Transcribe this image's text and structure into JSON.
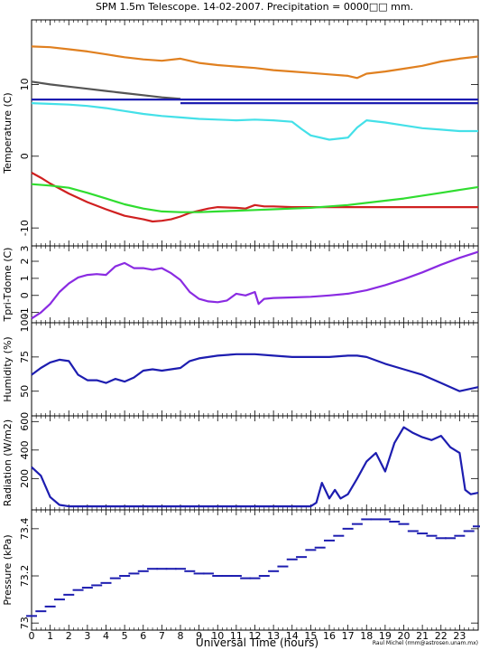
{
  "title": "SPM 1.5m Telescope. 14-02-2007. Precipitation = 0000□□ mm.",
  "xlabel": "Universal Time (hours)",
  "credit": "Raul Michel (rmm@astrosen.unam.mx)",
  "x_ticks": [
    0,
    1,
    2,
    3,
    4,
    5,
    6,
    7,
    8,
    9,
    10,
    11,
    12,
    13,
    14,
    15,
    16,
    17,
    18,
    19,
    20,
    21,
    22,
    23
  ],
  "chart_data": [
    {
      "type": "line",
      "ylabel": "Temperature (C)",
      "xlim": [
        0,
        24
      ],
      "ylim": [
        -12.5,
        19
      ],
      "y_ticks": [
        10,
        0,
        -10
      ],
      "series": [
        {
          "color": "#e08020",
          "x": [
            0,
            1,
            2,
            3,
            4,
            5,
            6,
            7,
            8,
            9,
            10,
            11,
            12,
            13,
            14,
            15,
            16,
            17,
            17.5,
            18,
            19,
            20,
            21,
            22,
            23,
            24
          ],
          "values": [
            15.3,
            15.2,
            14.9,
            14.6,
            14.2,
            13.8,
            13.5,
            13.3,
            13.6,
            13.0,
            12.7,
            12.5,
            12.3,
            12.0,
            11.8,
            11.6,
            11.4,
            11.2,
            10.9,
            11.5,
            11.8,
            12.2,
            12.6,
            13.2,
            13.6,
            13.9
          ]
        },
        {
          "color": "#555555",
          "x": [
            0,
            1,
            2,
            3,
            4,
            5,
            6,
            7,
            8
          ],
          "values": [
            10.4,
            10.0,
            9.7,
            9.4,
            9.1,
            8.8,
            8.5,
            8.2,
            8.0
          ]
        },
        {
          "color": "#1d1db0",
          "x": [
            0,
            24
          ],
          "values": [
            7.9,
            7.9
          ]
        },
        {
          "color": "#1d1db0",
          "x": [
            8,
            24
          ],
          "values": [
            7.4,
            7.4
          ]
        },
        {
          "color": "#44e0e8",
          "x": [
            0,
            1,
            2,
            3,
            4,
            5,
            6,
            7,
            8,
            9,
            10,
            11,
            12,
            13,
            14,
            14.5,
            15,
            16,
            17,
            17.5,
            18,
            19,
            20,
            21,
            22,
            23,
            24
          ],
          "values": [
            7.4,
            7.3,
            7.2,
            7.0,
            6.7,
            6.3,
            5.9,
            5.6,
            5.4,
            5.2,
            5.1,
            5.0,
            5.1,
            5.0,
            4.8,
            3.8,
            2.9,
            2.3,
            2.6,
            4.0,
            5.0,
            4.7,
            4.3,
            3.9,
            3.7,
            3.5,
            3.5
          ]
        },
        {
          "color": "#d02020",
          "x": [
            0,
            0.5,
            1,
            2,
            3,
            4,
            5,
            6,
            6.5,
            7,
            7.5,
            8,
            8.5,
            9,
            9.5,
            10,
            11,
            11.5,
            12,
            12.5,
            13,
            14,
            15,
            16,
            17,
            18,
            19,
            20,
            21,
            22,
            23,
            24
          ],
          "values": [
            -2.3,
            -3.0,
            -3.8,
            -5.2,
            -6.4,
            -7.4,
            -8.3,
            -8.8,
            -9.1,
            -9.0,
            -8.8,
            -8.4,
            -7.9,
            -7.6,
            -7.3,
            -7.1,
            -7.2,
            -7.3,
            -6.8,
            -7.0,
            -7.0,
            -7.1,
            -7.1,
            -7.1,
            -7.1,
            -7.1,
            -7.1,
            -7.1,
            -7.1,
            -7.1,
            -7.1,
            -7.1
          ]
        },
        {
          "color": "#30dd30",
          "x": [
            0,
            1,
            2,
            3,
            4,
            5,
            6,
            7,
            8,
            9,
            10,
            11,
            12,
            13,
            14,
            15,
            16,
            17,
            18,
            19,
            20,
            21,
            22,
            23,
            24
          ],
          "values": [
            -3.9,
            -4.1,
            -4.4,
            -5.1,
            -5.9,
            -6.7,
            -7.3,
            -7.7,
            -7.8,
            -7.8,
            -7.7,
            -7.6,
            -7.5,
            -7.4,
            -7.3,
            -7.2,
            -7.0,
            -6.8,
            -6.5,
            -6.2,
            -5.9,
            -5.5,
            -5.1,
            -4.7,
            -4.3
          ]
        }
      ]
    },
    {
      "type": "line",
      "ylabel": "Tpri-Tdome (C)",
      "xlim": [
        0,
        24
      ],
      "ylim": [
        -1.6,
        2.9
      ],
      "y_ticks": [
        2,
        1,
        0,
        -1
      ],
      "extra_tick_label": "3",
      "series": [
        {
          "color": "#8a2be2",
          "x": [
            0,
            0.5,
            1,
            1.5,
            2,
            2.5,
            3,
            3.5,
            4,
            4.5,
            5,
            5.5,
            6,
            6.5,
            7,
            7.5,
            8,
            8.5,
            9,
            9.5,
            10,
            10.5,
            11,
            11.5,
            12,
            12.2,
            12.5,
            13,
            14,
            15,
            16,
            17,
            18,
            19,
            20,
            21,
            22,
            23,
            24
          ],
          "values": [
            -1.35,
            -1.0,
            -0.5,
            0.2,
            0.7,
            1.05,
            1.2,
            1.25,
            1.2,
            1.7,
            1.9,
            1.6,
            1.6,
            1.5,
            1.6,
            1.3,
            0.9,
            0.2,
            -0.2,
            -0.35,
            -0.4,
            -0.3,
            0.1,
            0.0,
            0.2,
            -0.5,
            -0.2,
            -0.15,
            -0.12,
            -0.08,
            0.0,
            0.1,
            0.3,
            0.6,
            0.95,
            1.35,
            1.8,
            2.2,
            2.55
          ]
        }
      ]
    },
    {
      "type": "line",
      "ylabel": "Humidity (%)",
      "xlim": [
        0,
        24
      ],
      "ylim": [
        32,
        100
      ],
      "y_ticks": [
        100,
        75,
        50
      ],
      "series": [
        {
          "color": "#1d1db0",
          "x": [
            0,
            0.5,
            1,
            1.5,
            2,
            2.5,
            3,
            3.5,
            4,
            4.5,
            5,
            5.5,
            6,
            6.5,
            7,
            7.5,
            8,
            8.5,
            9,
            10,
            11,
            12,
            13,
            14,
            15,
            16,
            17,
            17.5,
            18,
            19,
            20,
            21,
            22,
            23,
            24
          ],
          "values": [
            62,
            67,
            71,
            73,
            72,
            62,
            58,
            58,
            56,
            59,
            57,
            60,
            65,
            66,
            65,
            66,
            67,
            72,
            74,
            76,
            77,
            77,
            76,
            75,
            75,
            75,
            76,
            76,
            75,
            70,
            66,
            62,
            56,
            50,
            53
          ]
        }
      ]
    },
    {
      "type": "line",
      "ylabel": "Radiation (W/m2)",
      "xlim": [
        0,
        24
      ],
      "ylim": [
        -20,
        640
      ],
      "y_ticks": [
        600,
        400,
        200
      ],
      "series": [
        {
          "color": "#1d1db0",
          "x": [
            0,
            0.5,
            1,
            1.5,
            2,
            3,
            4,
            5,
            6,
            7,
            8,
            9,
            10,
            11,
            12,
            13,
            14,
            15,
            15.3,
            15.6,
            16,
            16.3,
            16.6,
            17,
            17.5,
            18,
            18.5,
            19,
            19.5,
            20,
            20.5,
            21,
            21.5,
            22,
            22.5,
            23,
            23.3,
            23.6,
            24
          ],
          "values": [
            280,
            220,
            70,
            15,
            5,
            5,
            5,
            5,
            5,
            5,
            5,
            5,
            5,
            5,
            5,
            5,
            5,
            5,
            30,
            170,
            60,
            120,
            60,
            90,
            200,
            320,
            380,
            250,
            450,
            560,
            520,
            490,
            470,
            500,
            420,
            380,
            120,
            90,
            100
          ]
        }
      ]
    },
    {
      "type": "scatter",
      "ylabel": "Pressure (kPa)",
      "xlim": [
        0,
        24
      ],
      "ylim": [
        72.97,
        73.48
      ],
      "y_ticks": [
        73.4,
        73.2,
        73
      ],
      "series": [
        {
          "color": "#1d1db0",
          "x": [
            0,
            0.5,
            1,
            1.5,
            2,
            2.5,
            3,
            3.5,
            4,
            4.5,
            5,
            5.5,
            6,
            6.5,
            7,
            7.5,
            8,
            8.5,
            9,
            9.5,
            10,
            10.5,
            11,
            11.5,
            12,
            12.5,
            13,
            13.5,
            14,
            14.5,
            15,
            15.5,
            16,
            16.5,
            17,
            17.5,
            18,
            18.5,
            19,
            19.5,
            20,
            20.5,
            21,
            21.5,
            22,
            22.5,
            23,
            23.5,
            24
          ],
          "values": [
            73.03,
            73.05,
            73.07,
            73.1,
            73.12,
            73.14,
            73.15,
            73.16,
            73.17,
            73.19,
            73.2,
            73.21,
            73.22,
            73.23,
            73.23,
            73.23,
            73.23,
            73.22,
            73.21,
            73.21,
            73.2,
            73.2,
            73.2,
            73.19,
            73.19,
            73.2,
            73.22,
            73.24,
            73.27,
            73.28,
            73.31,
            73.32,
            73.35,
            73.37,
            73.4,
            73.42,
            73.44,
            73.44,
            73.44,
            73.43,
            73.42,
            73.39,
            73.38,
            73.37,
            73.36,
            73.36,
            73.37,
            73.39,
            73.41
          ]
        }
      ]
    }
  ]
}
